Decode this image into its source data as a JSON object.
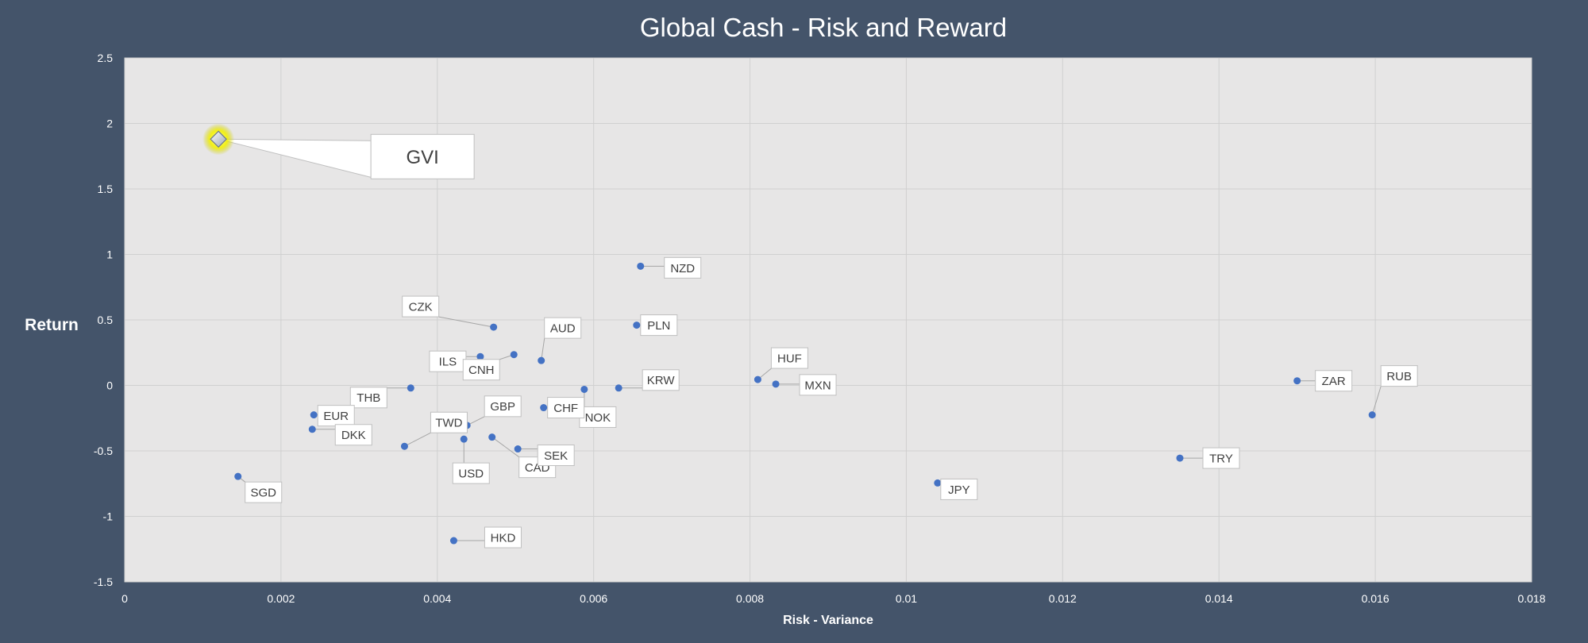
{
  "chart_data": {
    "type": "scatter",
    "title": "Global Cash - Risk and Reward",
    "xlabel": "Risk - Variance",
    "ylabel": "Return",
    "xlim": [
      0,
      0.018
    ],
    "ylim": [
      -1.5,
      2.5
    ],
    "grid": true,
    "x_ticks": [
      "0",
      "0.002",
      "0.004",
      "0.006",
      "0.008",
      "0.01",
      "0.012",
      "0.014",
      "0.016",
      "0.018"
    ],
    "y_ticks": [
      "2.5",
      "2",
      "1.5",
      "1",
      "0.5",
      "0",
      "-0.5",
      "-1",
      "-1.5"
    ],
    "points": [
      {
        "label": "GVI",
        "x": 0.0012,
        "y": 1.88,
        "highlight": true
      },
      {
        "label": "NZD",
        "x": 0.0066,
        "y": 0.91
      },
      {
        "label": "CZK",
        "x": 0.00472,
        "y": 0.445
      },
      {
        "label": "PLN",
        "x": 0.00655,
        "y": 0.46
      },
      {
        "label": "AUD",
        "x": 0.00533,
        "y": 0.19
      },
      {
        "label": "ILS",
        "x": 0.00455,
        "y": 0.22
      },
      {
        "label": "CNH",
        "x": 0.00498,
        "y": 0.235
      },
      {
        "label": "THB",
        "x": 0.00366,
        "y": -0.02
      },
      {
        "label": "HUF",
        "x": 0.0081,
        "y": 0.045
      },
      {
        "label": "MXN",
        "x": 0.00833,
        "y": 0.01
      },
      {
        "label": "KRW",
        "x": 0.00632,
        "y": -0.02
      },
      {
        "label": "NOK",
        "x": 0.00588,
        "y": -0.03
      },
      {
        "label": "CHF",
        "x": 0.00536,
        "y": -0.17
      },
      {
        "label": "EUR",
        "x": 0.00242,
        "y": -0.225
      },
      {
        "label": "DKK",
        "x": 0.0024,
        "y": -0.335
      },
      {
        "label": "GBP",
        "x": 0.00438,
        "y": -0.305
      },
      {
        "label": "TWD",
        "x": 0.00358,
        "y": -0.465
      },
      {
        "label": "USD",
        "x": 0.00434,
        "y": -0.41
      },
      {
        "label": "CAD",
        "x": 0.0047,
        "y": -0.395
      },
      {
        "label": "SEK",
        "x": 0.00503,
        "y": -0.485
      },
      {
        "label": "SGD",
        "x": 0.00145,
        "y": -0.695
      },
      {
        "label": "HKD",
        "x": 0.00421,
        "y": -1.185
      },
      {
        "label": "JPY",
        "x": 0.0104,
        "y": -0.745
      },
      {
        "label": "TRY",
        "x": 0.0135,
        "y": -0.555
      },
      {
        "label": "ZAR",
        "x": 0.015,
        "y": 0.035
      },
      {
        "label": "RUB",
        "x": 0.01596,
        "y": -0.225
      }
    ]
  },
  "colors": {
    "background": "#44546a",
    "plot_area": "#e7e6e6",
    "point": "#4472c4",
    "highlight_glow": "#f3f100",
    "text_light": "#ffffff"
  }
}
